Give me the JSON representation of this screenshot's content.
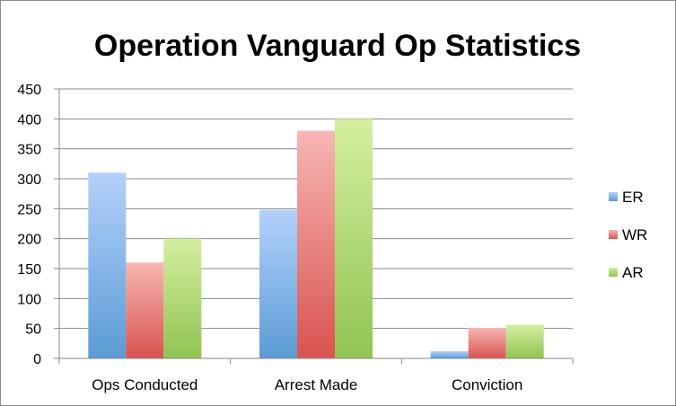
{
  "chart_data": {
    "type": "bar",
    "title": "Operation Vanguard Op Statistics",
    "xlabel": "",
    "ylabel": "",
    "categories": [
      "Ops Conducted",
      "Arrest Made",
      "Conviction"
    ],
    "series": [
      {
        "name": "ER",
        "values": [
          310,
          248,
          12
        ],
        "color": "#5b9bd5",
        "light": "#b3d1fb"
      },
      {
        "name": "WR",
        "values": [
          160,
          380,
          51
        ],
        "color": "#d9534f",
        "light": "#f7b6b4"
      },
      {
        "name": "AR",
        "values": [
          200,
          400,
          56
        ],
        "color": "#92c353",
        "light": "#d3ef9f"
      }
    ],
    "ylim": [
      0,
      450
    ],
    "yticks": [
      0,
      50,
      100,
      150,
      200,
      250,
      300,
      350,
      400,
      450
    ],
    "grid": true,
    "legend": "right"
  }
}
